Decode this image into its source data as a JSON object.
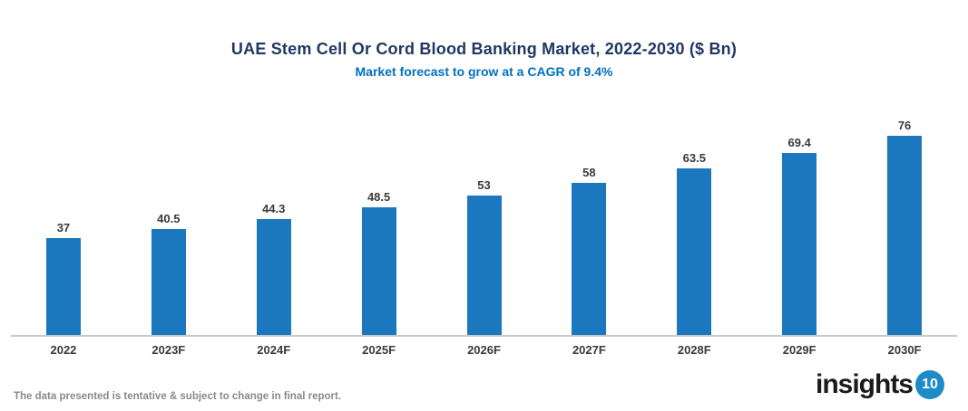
{
  "chart_data": {
    "type": "bar",
    "title": "UAE Stem Cell Or Cord Blood Banking Market, 2022-2030 ($ Bn)",
    "subtitle": "Market forecast to grow at a CAGR of 9.4%",
    "categories": [
      "2022",
      "2023F",
      "2024F",
      "2025F",
      "2026F",
      "2027F",
      "2028F",
      "2029F",
      "2030F"
    ],
    "values": [
      37,
      40.5,
      44.3,
      48.5,
      53,
      58,
      63.5,
      69.4,
      76
    ],
    "xlabel": "",
    "ylabel": "",
    "ylim": [
      0,
      80
    ],
    "grid": false,
    "legend": false,
    "bar_color": "#1B78BE",
    "data_labels_shown": true
  },
  "colors": {
    "title": "#1F3864",
    "subtitle": "#0070C0",
    "label": "#3A3A3A",
    "axis_line": "#C9C9C9",
    "footer_text": "#8A8A8A",
    "logo_circle": "#1E8BC6",
    "bar": "#1B78BE"
  },
  "footer": {
    "disclaimer": "The data presented is tentative & subject to change in final report.",
    "logo_text": "insights",
    "logo_number": "10"
  }
}
